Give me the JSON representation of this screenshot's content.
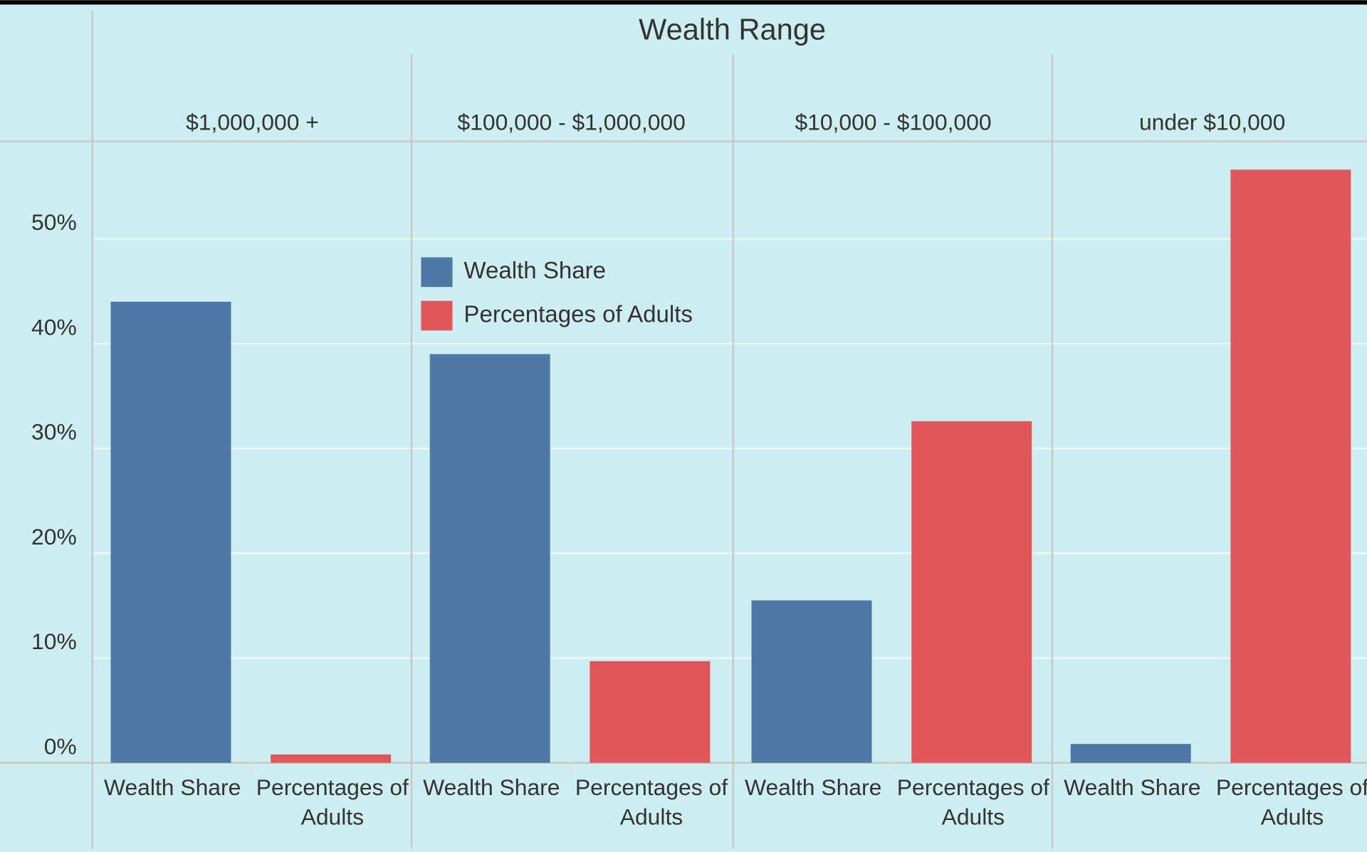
{
  "chart_data": {
    "type": "bar",
    "title": "Wealth Range",
    "categories": [
      "$1,000,000 +",
      "$100,000 - $1,000,000",
      "$10,000 - $100,000",
      "under $10,000"
    ],
    "series": [
      {
        "name": "Wealth Share",
        "color": "#4e79a7",
        "values": [
          44,
          39,
          15.5,
          1.8
        ]
      },
      {
        "name": "Percentages of Adults",
        "color": "#e15759",
        "values": [
          0.8,
          9.7,
          32.6,
          56.6
        ]
      }
    ],
    "ylim": [
      0,
      59.3
    ],
    "yticks": [
      {
        "value": 0,
        "label": "0%"
      },
      {
        "value": 10,
        "label": "10%"
      },
      {
        "value": 20,
        "label": "20%"
      },
      {
        "value": 30,
        "label": "30%"
      },
      {
        "value": 40,
        "label": "40%"
      },
      {
        "value": 50,
        "label": "50%"
      }
    ],
    "grid": true,
    "legend": "inside"
  }
}
